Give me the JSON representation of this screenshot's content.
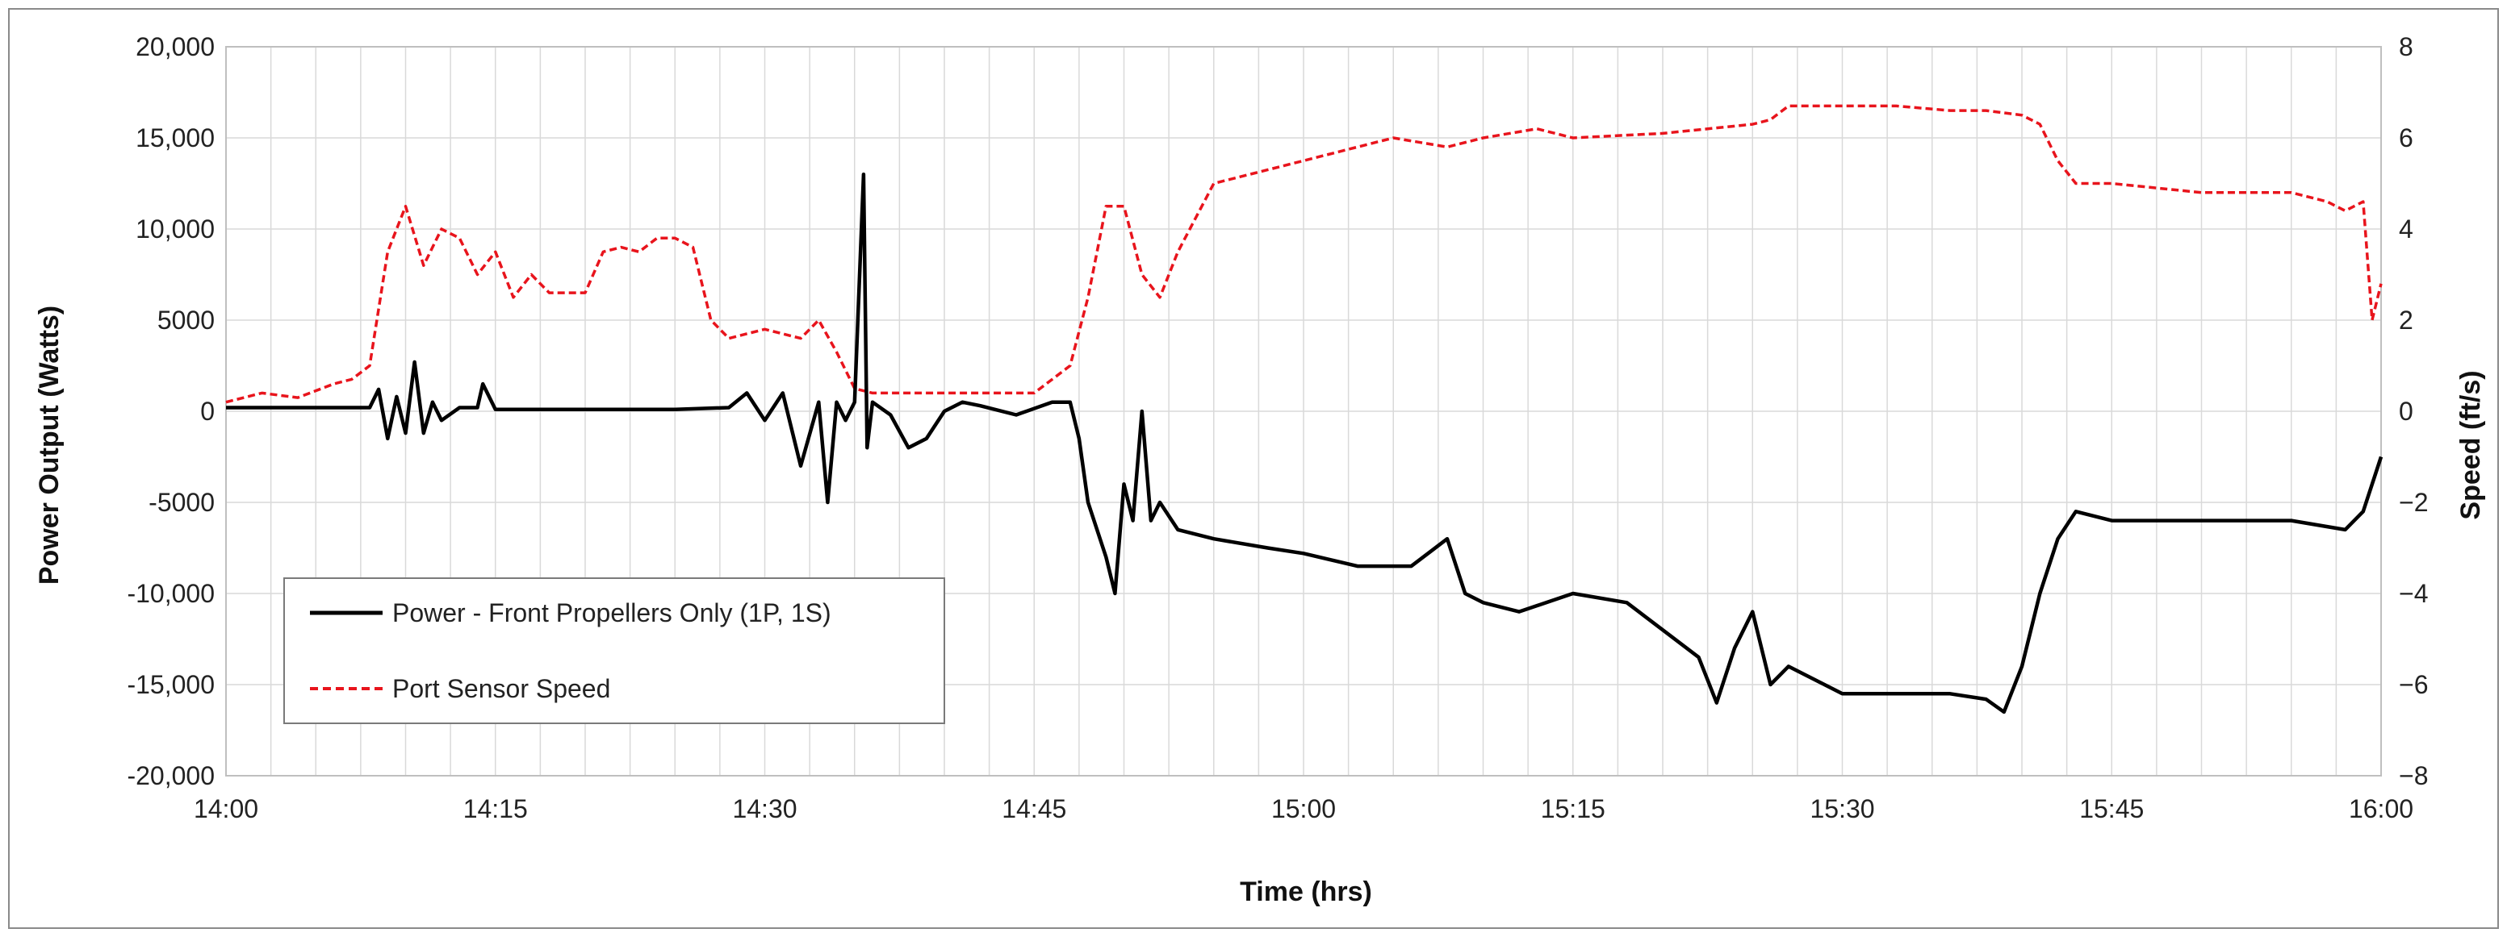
{
  "chart_data": {
    "type": "line",
    "title": "",
    "xlabel": "Time (hrs)",
    "ylabel": "Power Output (Watts)",
    "y2label": "Speed (ft/s)",
    "xlim": [
      "14:00",
      "16:00"
    ],
    "x_ticks": [
      "14:00",
      "14:15",
      "14:30",
      "14:45",
      "15:00",
      "15:15",
      "15:30",
      "15:45",
      "16:00"
    ],
    "ylim": [
      -20000,
      20000
    ],
    "y_ticks": [
      "20,000",
      "15,000",
      "10,000",
      "5000",
      "0",
      "-5000",
      "-10,000",
      "-15,000",
      "-20,000"
    ],
    "y2lim": [
      -8,
      8
    ],
    "y2_ticks": [
      "8",
      "6",
      "4",
      "2",
      "0",
      "−2",
      "−4",
      "−6",
      "−8"
    ],
    "grid": true,
    "legend_position": "lower-left",
    "series": [
      {
        "name": "Power - Front Propellers Only (1P, 1S)",
        "axis": "left",
        "color": "#000000",
        "style": "solid",
        "x": [
          "14:00",
          "14:03",
          "14:06",
          "14:08",
          "14:08.5",
          "14:09",
          "14:09.5",
          "14:10",
          "14:10.5",
          "14:11",
          "14:11.5",
          "14:12",
          "14:13",
          "14:14",
          "14:14.3",
          "14:15",
          "14:20",
          "14:25",
          "14:28",
          "14:29",
          "14:30",
          "14:31",
          "14:32",
          "14:33",
          "14:33.5",
          "14:34",
          "14:34.5",
          "14:35",
          "14:35.5",
          "14:35.7",
          "14:36",
          "14:37",
          "14:38",
          "14:39",
          "14:40",
          "14:41",
          "14:42",
          "14:44",
          "14:46",
          "14:47",
          "14:47.5",
          "14:48",
          "14:49",
          "14:49.5",
          "14:50",
          "14:50.5",
          "14:51",
          "14:51.5",
          "14:52",
          "14:53",
          "14:55",
          "14:58",
          "15:00",
          "15:03",
          "15:06",
          "15:08",
          "15:09",
          "15:10",
          "15:12",
          "15:15",
          "15:18",
          "15:20",
          "15:22",
          "15:23",
          "15:24",
          "15:25",
          "15:26",
          "15:27",
          "15:30",
          "15:33",
          "15:36",
          "15:38",
          "15:39",
          "15:40",
          "15:41",
          "15:42",
          "15:43",
          "15:45",
          "15:50",
          "15:55",
          "15:58",
          "15:59",
          "16:00"
        ],
        "values": [
          200,
          200,
          200,
          200,
          1200,
          -1500,
          800,
          -1200,
          2700,
          -1200,
          500,
          -500,
          200,
          200,
          1500,
          100,
          100,
          100,
          200,
          1000,
          -500,
          1000,
          -3000,
          500,
          -5000,
          500,
          -500,
          500,
          13000,
          -2000,
          500,
          -200,
          -2000,
          -1500,
          0,
          500,
          300,
          -200,
          500,
          500,
          -1500,
          -5000,
          -8000,
          -10000,
          -4000,
          -6000,
          0,
          -6000,
          -5000,
          -6500,
          -7000,
          -7500,
          -7800,
          -8500,
          -8500,
          -7000,
          -10000,
          -10500,
          -11000,
          -10000,
          -10500,
          -12000,
          -13500,
          -16000,
          -13000,
          -11000,
          -15000,
          -14000,
          -15500,
          -15500,
          -15500,
          -15800,
          -16500,
          -14000,
          -10000,
          -7000,
          -5500,
          -6000,
          -6000,
          -6000,
          -6500,
          -5500,
          -2500
        ]
      },
      {
        "name": "Port Sensor Speed",
        "axis": "right",
        "color": "#e8141c",
        "style": "dashed",
        "x": [
          "14:00",
          "14:02",
          "14:04",
          "14:06",
          "14:07",
          "14:08",
          "14:09",
          "14:10",
          "14:11",
          "14:12",
          "14:13",
          "14:14",
          "14:15",
          "14:16",
          "14:17",
          "14:18",
          "14:20",
          "14:21",
          "14:22",
          "14:23",
          "14:24",
          "14:25",
          "14:26",
          "14:27",
          "14:28",
          "14:30",
          "14:32",
          "14:33",
          "14:34",
          "14:35",
          "14:36",
          "14:40",
          "14:45",
          "14:47",
          "14:48",
          "14:49",
          "14:50",
          "14:51",
          "14:52",
          "14:53",
          "14:55",
          "14:58",
          "15:00",
          "15:03",
          "15:05",
          "15:08",
          "15:10",
          "15:13",
          "15:15",
          "15:20",
          "15:25",
          "15:26",
          "15:27",
          "15:30",
          "15:33",
          "15:36",
          "15:38",
          "15:40",
          "15:41",
          "15:42",
          "15:43",
          "15:45",
          "15:50",
          "15:55",
          "15:57",
          "15:58",
          "15:59",
          "15:59.5",
          "16:00"
        ],
        "values": [
          0.2,
          0.4,
          0.3,
          0.6,
          0.7,
          1.0,
          3.5,
          4.5,
          3.2,
          4.0,
          3.8,
          3.0,
          3.5,
          2.5,
          3.0,
          2.6,
          2.6,
          3.5,
          3.6,
          3.5,
          3.8,
          3.8,
          3.6,
          2.0,
          1.6,
          1.8,
          1.6,
          2.0,
          1.3,
          0.5,
          0.4,
          0.4,
          0.4,
          1.0,
          2.5,
          4.5,
          4.5,
          3.0,
          2.5,
          3.5,
          5.0,
          5.3,
          5.5,
          5.8,
          6.0,
          5.8,
          6.0,
          6.2,
          6.0,
          6.1,
          6.3,
          6.4,
          6.7,
          6.7,
          6.7,
          6.6,
          6.6,
          6.5,
          6.3,
          5.5,
          5.0,
          5.0,
          4.8,
          4.8,
          4.6,
          4.4,
          4.6,
          2.0,
          2.8
        ]
      }
    ]
  }
}
